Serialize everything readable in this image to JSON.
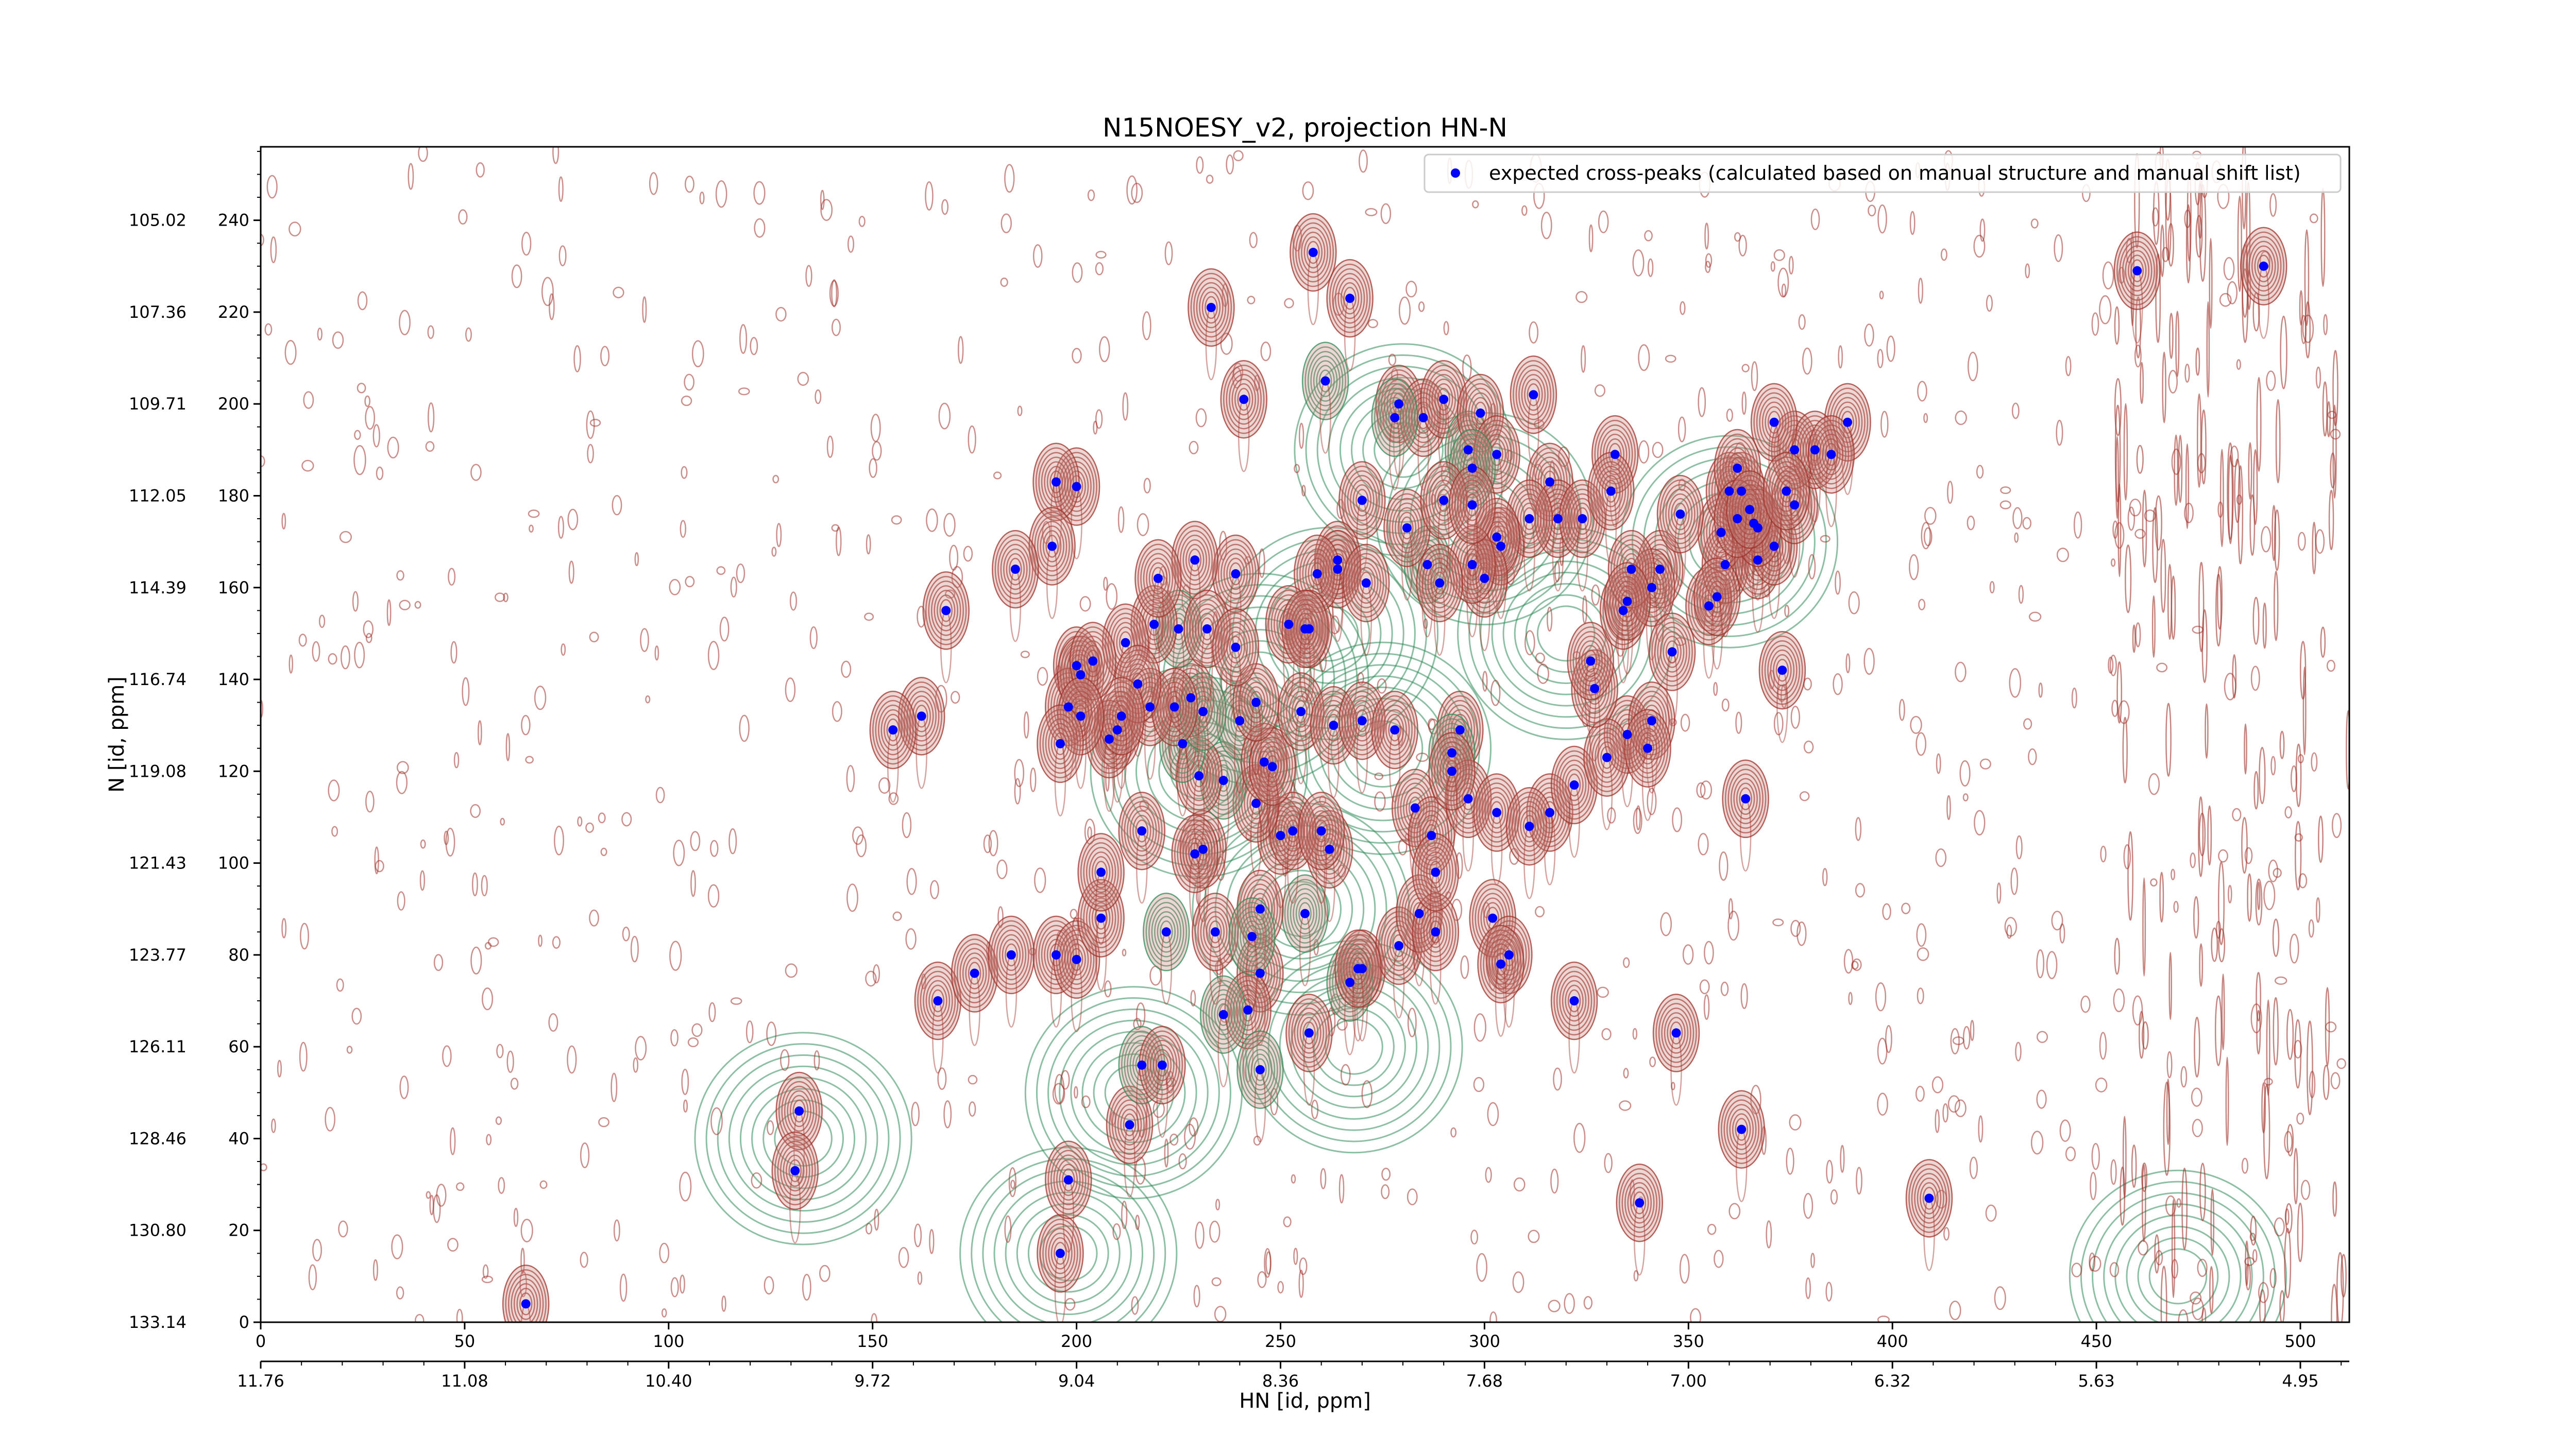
{
  "chart_data": {
    "type": "scatter",
    "title": "N15NOESY_v2, projection HN-N",
    "xlabel": "HN [id, ppm]",
    "ylabel": "N [id, ppm]",
    "xlim": [
      0,
      512
    ],
    "ylim": [
      0,
      256
    ],
    "x_ticks": [
      0,
      50,
      100,
      150,
      200,
      250,
      300,
      350,
      400,
      450,
      500
    ],
    "y_ticks": [
      0,
      20,
      40,
      60,
      80,
      100,
      120,
      140,
      160,
      180,
      200,
      220,
      240
    ],
    "x_ppm_tick_labels": [
      "11.76",
      "11.08",
      "10.40",
      "9.72",
      "9.04",
      "8.36",
      "7.68",
      "7.00",
      "6.32",
      "5.63",
      "4.95"
    ],
    "y_ppm_tick_labels": [
      "133.14",
      "130.80",
      "128.46",
      "126.11",
      "123.77",
      "121.43",
      "119.08",
      "116.74",
      "114.39",
      "112.05",
      "109.71",
      "107.36",
      "105.02"
    ],
    "legend_position": "top-right",
    "grid": false,
    "series": [
      {
        "name": "expected cross-peaks (calculated based on manual structure and manual shift list)",
        "color": "#0000ff",
        "points": [
          [
            65,
            4
          ],
          [
            132,
            46
          ],
          [
            131,
            33
          ],
          [
            196,
            15
          ],
          [
            198,
            31
          ],
          [
            213,
            43
          ],
          [
            216,
            56
          ],
          [
            221,
            56
          ],
          [
            166,
            70
          ],
          [
            175,
            76
          ],
          [
            184,
            80
          ],
          [
            195,
            80
          ],
          [
            200,
            79
          ],
          [
            206,
            88
          ],
          [
            222,
            85
          ],
          [
            245,
            76
          ],
          [
            270,
            77
          ],
          [
            279,
            82
          ],
          [
            267,
            74
          ],
          [
            269,
            77
          ],
          [
            257,
            63
          ],
          [
            242,
            68
          ],
          [
            236,
            67
          ],
          [
            245,
            55
          ],
          [
            256,
            89
          ],
          [
            245,
            90
          ],
          [
            234,
            85
          ],
          [
            243,
            84
          ],
          [
            262,
            103
          ],
          [
            250,
            106
          ],
          [
            253,
            107
          ],
          [
            260,
            107
          ],
          [
            231,
            103
          ],
          [
            229,
            102
          ],
          [
            206,
            98
          ],
          [
            216,
            107
          ],
          [
            244,
            113
          ],
          [
            236,
            118
          ],
          [
            230,
            119
          ],
          [
            226,
            126
          ],
          [
            210,
            129
          ],
          [
            208,
            127
          ],
          [
            218,
            134
          ],
          [
            228,
            136
          ],
          [
            240,
            131
          ],
          [
            246,
            122
          ],
          [
            248,
            121
          ],
          [
            231,
            133
          ],
          [
            224,
            134
          ],
          [
            244,
            135
          ],
          [
            255,
            133
          ],
          [
            263,
            130
          ],
          [
            270,
            131
          ],
          [
            278,
            129
          ],
          [
            294,
            129
          ],
          [
            292,
            124
          ],
          [
            283,
            112
          ],
          [
            287,
            106
          ],
          [
            296,
            114
          ],
          [
            303,
            111
          ],
          [
            316,
            111
          ],
          [
            322,
            117
          ],
          [
            335,
            128
          ],
          [
            330,
            123
          ],
          [
            341,
            131
          ],
          [
            340,
            125
          ],
          [
            327,
            138
          ],
          [
            326,
            144
          ],
          [
            292,
            120
          ],
          [
            284,
            89
          ],
          [
            288,
            85
          ],
          [
            288,
            98
          ],
          [
            302,
            88
          ],
          [
            306,
            80
          ],
          [
            304,
            78
          ],
          [
            311,
            108
          ],
          [
            322,
            70
          ],
          [
            338,
            26
          ],
          [
            347,
            63
          ],
          [
            363,
            42
          ],
          [
            364,
            114
          ],
          [
            373,
            142
          ],
          [
            389,
            196
          ],
          [
            409,
            27
          ],
          [
            460,
            229
          ],
          [
            491,
            230
          ],
          [
            258,
            233
          ],
          [
            267,
            223
          ],
          [
            233,
            221
          ],
          [
            261,
            205
          ],
          [
            241,
            201
          ],
          [
            279,
            200
          ],
          [
            285,
            197
          ],
          [
            278,
            197
          ],
          [
            290,
            201
          ],
          [
            296,
            190
          ],
          [
            299,
            198
          ],
          [
            312,
            202
          ],
          [
            303,
            189
          ],
          [
            297,
            186
          ],
          [
            316,
            183
          ],
          [
            318,
            175
          ],
          [
            324,
            175
          ],
          [
            311,
            175
          ],
          [
            304,
            169
          ],
          [
            303,
            171
          ],
          [
            300,
            162
          ],
          [
            297,
            165
          ],
          [
            286,
            165
          ],
          [
            289,
            161
          ],
          [
            281,
            173
          ],
          [
            270,
            179
          ],
          [
            264,
            166
          ],
          [
            264,
            164
          ],
          [
            271,
            161
          ],
          [
            239,
            163
          ],
          [
            229,
            166
          ],
          [
            225,
            151
          ],
          [
            232,
            151
          ],
          [
            239,
            147
          ],
          [
            219,
            152
          ],
          [
            220,
            162
          ],
          [
            212,
            148
          ],
          [
            215,
            139
          ],
          [
            211,
            132
          ],
          [
            200,
            143
          ],
          [
            198,
            134
          ],
          [
            201,
            141
          ],
          [
            204,
            144
          ],
          [
            201,
            132
          ],
          [
            196,
            126
          ],
          [
            200,
            182
          ],
          [
            195,
            183
          ],
          [
            194,
            169
          ],
          [
            185,
            164
          ],
          [
            168,
            155
          ],
          [
            162,
            132
          ],
          [
            155,
            129
          ],
          [
            259,
            163
          ],
          [
            252,
            152
          ],
          [
            257,
            151
          ],
          [
            256,
            151
          ],
          [
            290,
            179
          ],
          [
            297,
            178
          ],
          [
            334,
            155
          ],
          [
            343,
            164
          ],
          [
            341,
            160
          ],
          [
            346,
            146
          ],
          [
            355,
            156
          ],
          [
            359,
            165
          ],
          [
            358,
            172
          ],
          [
            363,
            181
          ],
          [
            366,
            174
          ],
          [
            367,
            166
          ],
          [
            371,
            169
          ],
          [
            376,
            178
          ],
          [
            376,
            190
          ],
          [
            381,
            190
          ],
          [
            385,
            189
          ],
          [
            371,
            196
          ],
          [
            357,
            158
          ],
          [
            348,
            176
          ],
          [
            360,
            181
          ],
          [
            362,
            186
          ],
          [
            332,
            189
          ],
          [
            331,
            181
          ],
          [
            336,
            164
          ],
          [
            335,
            157
          ],
          [
            367,
            173
          ],
          [
            362,
            175
          ],
          [
            365,
            177
          ],
          [
            374,
            181
          ]
        ]
      }
    ]
  }
}
